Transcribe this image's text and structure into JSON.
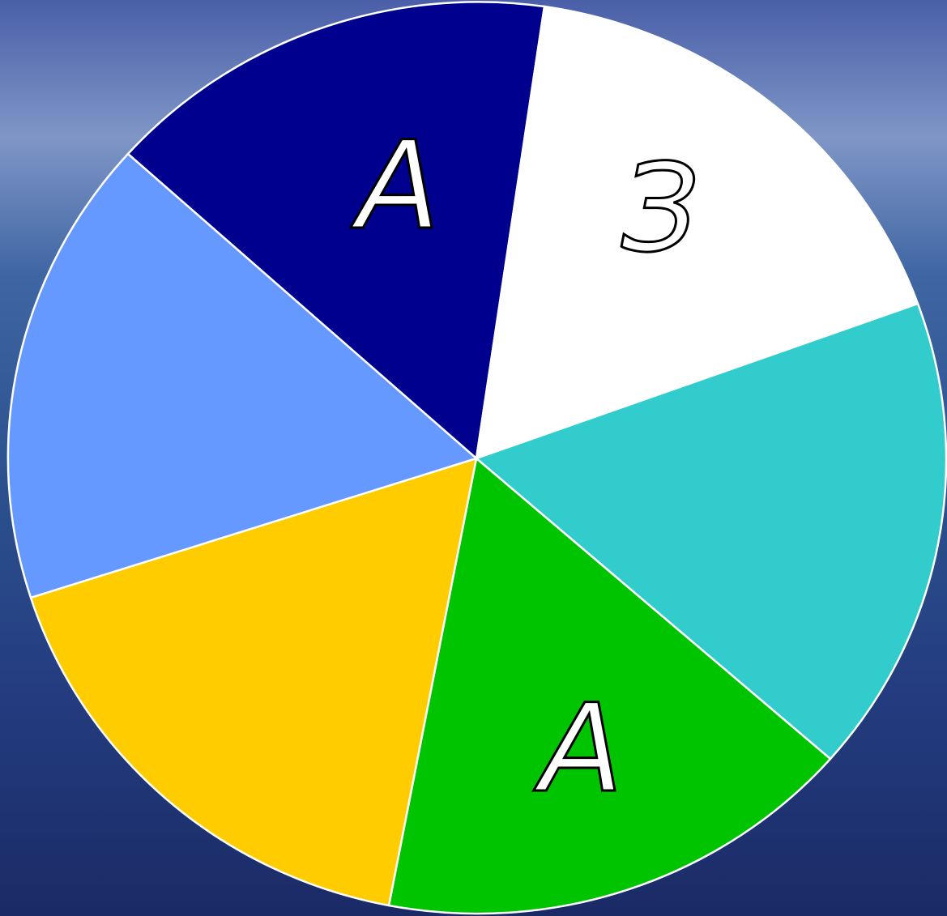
{
  "wheel": {
    "labels": [
      "А",
      "З",
      "А"
    ]
  }
}
